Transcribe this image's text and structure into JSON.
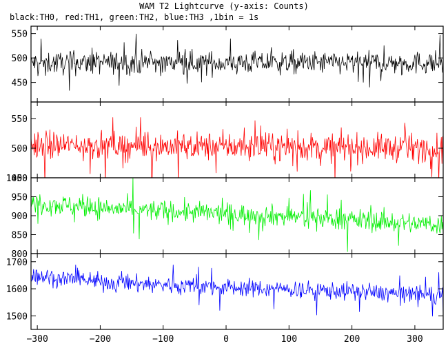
{
  "chart_data": {
    "type": "line",
    "title": "WAM T2 Lightcurve (y-axis: Counts)",
    "subtitle": "black:TH0, red:TH1, green:TH2, blue:TH3 ,1bin = 1s",
    "x_range": [
      -310,
      345
    ],
    "x_bin": 1,
    "x_ticks": [
      -300,
      -200,
      -100,
      0,
      100,
      200,
      300
    ],
    "grid": false,
    "legend": "none",
    "panels": [
      {
        "color": "#000000",
        "ylim": [
          410,
          565
        ],
        "y_ticks": [
          450,
          500,
          550
        ],
        "trend": [
          [
            -310,
            490
          ],
          [
            345,
            490
          ]
        ],
        "noise_amplitude": 25,
        "spike_amplitude": 45
      },
      {
        "color": "#ff0000",
        "ylim": [
          450,
          578
        ],
        "y_ticks": [
          450,
          500,
          550
        ],
        "trend": [
          [
            -310,
            505
          ],
          [
            345,
            500
          ]
        ],
        "noise_amplitude": 25,
        "spike_amplitude": 45
      },
      {
        "color": "#00ee00",
        "ylim": [
          800,
          1000
        ],
        "y_ticks": [
          800,
          850,
          900,
          950,
          1000
        ],
        "trend": [
          [
            -310,
            935
          ],
          [
            -200,
            920
          ],
          [
            0,
            905
          ],
          [
            150,
            895
          ],
          [
            345,
            875
          ]
        ],
        "noise_amplitude": 30,
        "spike_amplitude": 55
      },
      {
        "color": "#0000ff",
        "ylim": [
          1450,
          1730
        ],
        "y_ticks": [
          1500,
          1600,
          1700
        ],
        "trend": [
          [
            -310,
            1650
          ],
          [
            -200,
            1625
          ],
          [
            0,
            1605
          ],
          [
            200,
            1590
          ],
          [
            345,
            1575
          ]
        ],
        "noise_amplitude": 35,
        "spike_amplitude": 70
      }
    ]
  }
}
